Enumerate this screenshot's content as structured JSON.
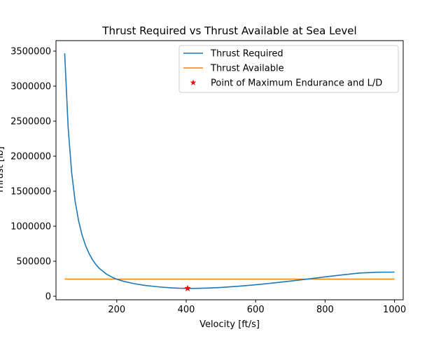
{
  "chart_data": {
    "type": "line",
    "title": "Thrust Required vs Thrust Available at Sea Level",
    "xlabel": "Velocity [ft/s]",
    "ylabel": "Thrust [lb]",
    "xlim": [
      25,
      1025
    ],
    "ylim": [
      -50000,
      3650000
    ],
    "x_ticks": [
      200,
      400,
      600,
      800,
      1000
    ],
    "y_ticks": [
      0,
      500000,
      1000000,
      1500000,
      2000000,
      2500000,
      3000000,
      3500000
    ],
    "grid": false,
    "legend_position": "top-right",
    "colors": {
      "thrust_required": "#1f77b4",
      "thrust_available": "#ff7f0e",
      "max_endurance_point": "#ff0000"
    },
    "series": [
      {
        "name": "Thrust Required",
        "color": "#1f77b4",
        "x": [
          50,
          60,
          70,
          80,
          90,
          100,
          110,
          120,
          130,
          140,
          150,
          170,
          190,
          200,
          220,
          250,
          280,
          300,
          330,
          360,
          380,
          404,
          430,
          460,
          500,
          550,
          600,
          650,
          700,
          750,
          800,
          850,
          900,
          950,
          1000
        ],
        "y": [
          3470000,
          2410000,
          1770000,
          1360000,
          1080000,
          876000,
          726000,
          612000,
          523000,
          453000,
          397000,
          317000,
          264000,
          244000,
          213000,
          180000,
          156000,
          145000,
          130000,
          119000,
          115000,
          112000,
          113000,
          117000,
          126000,
          143000,
          164000,
          189000,
          217000,
          246000,
          277000,
          306000,
          332000,
          343000,
          345000
        ]
      },
      {
        "name": "Thrust Available",
        "color": "#ff7f0e",
        "x": [
          50,
          1000
        ],
        "y": [
          245000,
          245000
        ]
      },
      {
        "name": "Point of Maximum Endurance and L/D",
        "color": "#ff0000",
        "marker": "star",
        "x": [
          404
        ],
        "y": [
          112000
        ]
      }
    ]
  }
}
